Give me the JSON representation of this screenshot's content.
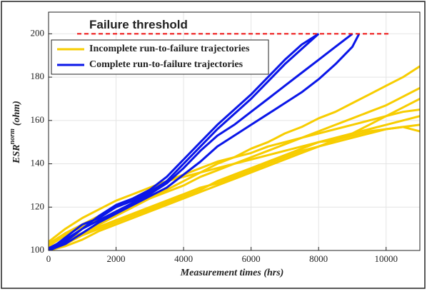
{
  "chart_data": {
    "type": "line",
    "xlabel": "Measurement times (hrs)",
    "ylabel": {
      "base": "ESR",
      "sup": "norm",
      "unit": "(ohm)"
    },
    "xlim": [
      0,
      11000
    ],
    "xticks": [
      0,
      2000,
      4000,
      6000,
      8000,
      10000
    ],
    "ylim": [
      100,
      210
    ],
    "yticks": [
      100,
      120,
      140,
      160,
      180,
      200
    ],
    "grid": true,
    "legend": "upper left",
    "threshold": {
      "value": 200,
      "label": "Failure threshold",
      "color": "#ee1111"
    },
    "series": [
      {
        "name": "Incomplete run-to-failure trajectories",
        "color": "#f7cd00",
        "lines": [
          {
            "x": [
              0,
              500,
              1000,
              1500,
              2000,
              2500,
              3000,
              3500,
              4000,
              4500,
              5000,
              5500,
              6000,
              6500,
              7000,
              7500,
              8000,
              8500,
              9000,
              9500,
              10000,
              10500,
              11000
            ],
            "values": [
              100,
              104,
              108,
              112,
              116,
              120,
              124,
              128,
              132,
              136,
              140,
              143,
              147,
              150,
              154,
              157,
              161,
              164,
              168,
              172,
              176,
              180,
              185
            ]
          },
          {
            "x": [
              0,
              500,
              1000,
              1500,
              2000,
              2500,
              3000,
              3500,
              4000,
              4500,
              5000,
              5500,
              6000,
              6500,
              7000,
              7500,
              8000,
              8500,
              9000,
              9500,
              10000,
              10500,
              11000
            ],
            "values": [
              102,
              107,
              111,
              114,
              118,
              121,
              124,
              127,
              130,
              134,
              137,
              140,
              143,
              146,
              149,
              152,
              155,
              158,
              161,
              164,
              167,
              171,
              175
            ]
          },
          {
            "x": [
              0,
              500,
              1000,
              1500,
              2000,
              2500,
              3000,
              3500,
              4000,
              4500,
              5000,
              5500,
              6000,
              6500,
              7000,
              7500,
              8000,
              8500,
              9000,
              9500,
              10000,
              10500,
              11000
            ],
            "values": [
              100,
              103,
              107,
              110,
              113,
              116,
              119,
              122,
              125,
              128,
              132,
              135,
              138,
              141,
              144,
              147,
              150,
              152,
              154,
              156,
              158,
              160,
              162
            ]
          },
          {
            "x": [
              0,
              500,
              1000,
              1500,
              2000,
              2500,
              3000,
              3500,
              4000,
              4500,
              5000,
              5500,
              6000,
              6500,
              7000,
              7500,
              8000,
              8500,
              9000,
              9500,
              10000,
              10500,
              11000
            ],
            "values": [
              101,
              105,
              108,
              111,
              114,
              117,
              120,
              123,
              126,
              129,
              131,
              134,
              137,
              140,
              143,
              146,
              148,
              150,
              152,
              154,
              156,
              157,
              158
            ]
          },
          {
            "x": [
              0,
              500,
              1000,
              1500,
              2000,
              2500,
              3000,
              3500,
              4000,
              4500,
              5000,
              5500,
              6000,
              6500,
              7000,
              7500,
              8000,
              8500,
              9000,
              9500,
              10000,
              10500,
              11000
            ],
            "values": [
              103,
              108,
              112,
              116,
              120,
              124,
              128,
              132,
              135,
              138,
              141,
              143,
              145,
              148,
              150,
              152,
              154,
              156,
              158,
              160,
              162,
              164,
              165
            ]
          },
          {
            "x": [
              0,
              500,
              1000,
              1500,
              2000,
              2500,
              3000,
              3500,
              4000,
              4500,
              5000,
              5500,
              6000,
              6500,
              7000,
              7500,
              8000,
              8500,
              9000,
              9500,
              10000,
              10500,
              11000
            ],
            "values": [
              100,
              102,
              105,
              109,
              112,
              115,
              118,
              121,
              124,
              127,
              130,
              133,
              136,
              139,
              142,
              145,
              148,
              151,
              154,
              158,
              162,
              166,
              170
            ]
          },
          {
            "x": [
              0,
              500,
              1000,
              1500,
              2000,
              2500,
              3000,
              3500,
              4000,
              4500,
              5000,
              5500,
              6000,
              6500,
              7000,
              7500,
              8000,
              8500,
              9000,
              9500,
              10000,
              10500,
              11000
            ],
            "values": [
              104,
              110,
              115,
              119,
              123,
              126,
              129,
              132,
              134,
              136,
              138,
              140,
              142,
              144,
              146,
              148,
              150,
              151,
              153,
              155,
              156,
              157,
              155
            ]
          }
        ]
      },
      {
        "name": "Complete run-to-failure trajectories",
        "color": "#0a16e8",
        "lines": [
          {
            "x": [
              0,
              500,
              1000,
              1500,
              2000,
              2500,
              3000,
              3500,
              4000,
              4500,
              5000,
              5500,
              6000,
              6500,
              7000,
              7500,
              8000
            ],
            "values": [
              100,
              106,
              112,
              115,
              120,
              123,
              127,
              132,
              140,
              148,
              156,
              163,
              170,
              178,
              186,
              193,
              200
            ]
          },
          {
            "x": [
              0,
              500,
              1000,
              1500,
              2000,
              2500,
              3000,
              3500,
              4000,
              4500,
              5000,
              5500,
              6000,
              6500,
              7000,
              7500,
              8000,
              8500,
              9000
            ],
            "values": [
              100,
              104,
              110,
              114,
              118,
              122,
              126,
              131,
              138,
              146,
              153,
              158,
              164,
              170,
              176,
              182,
              188,
              194,
              200
            ]
          },
          {
            "x": [
              0,
              500,
              1000,
              1500,
              2000,
              2500,
              3000,
              3500,
              4000,
              4500,
              5000,
              5500,
              6000,
              6500,
              7000,
              7500,
              8000,
              8500,
              9000,
              9200
            ],
            "values": [
              100,
              103,
              108,
              113,
              117,
              121,
              125,
              129,
              135,
              141,
              148,
              153,
              158,
              163,
              168,
              173,
              179,
              186,
              194,
              200
            ]
          },
          {
            "x": [
              0,
              500,
              1000,
              1500,
              2000,
              2500,
              3000,
              3500,
              4000,
              4500,
              5000,
              5500,
              6000,
              6500,
              7000,
              7500,
              8000
            ],
            "values": [
              101,
              105,
              110,
              116,
              121,
              124,
              128,
              134,
              142,
              150,
              158,
              165,
              172,
              180,
              188,
              195,
              200
            ]
          }
        ]
      }
    ]
  }
}
